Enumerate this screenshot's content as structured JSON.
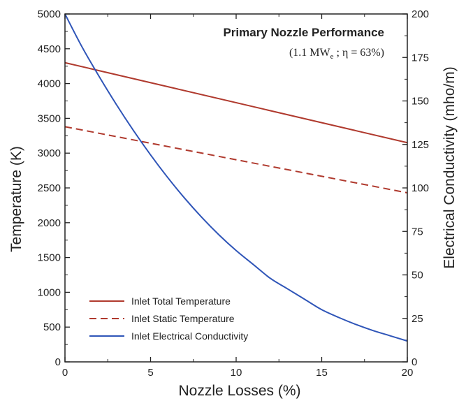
{
  "chart_data": {
    "type": "line",
    "title": "Primary Nozzle Performance",
    "subtitle": "(1.1 MW",
    "subtitle_sub": "e",
    "subtitle_tail": "; η = 63%)",
    "xlabel": "Nozzle Losses  (%)",
    "ylabel": "Temperature  (K)",
    "y2label": "Electrical Conductivity  (mho/m)",
    "xlim": [
      0,
      20
    ],
    "ylim": [
      0,
      5000
    ],
    "y2lim": [
      0,
      200
    ],
    "xticks": [
      "0",
      "5",
      "10",
      "15",
      "20"
    ],
    "yticks": [
      "0",
      "500",
      "1000",
      "1500",
      "2000",
      "2500",
      "3000",
      "3500",
      "4000",
      "4500",
      "5000"
    ],
    "y2ticks": [
      "0",
      "25",
      "50",
      "75",
      "100",
      "125",
      "150",
      "175",
      "200"
    ],
    "grid": false,
    "legend_position": "bottom-left",
    "series": [
      {
        "name": "Inlet Total Temperature",
        "axis": "left",
        "color": "#b03a2e",
        "dash": false,
        "x": [
          0,
          20
        ],
        "y": [
          4300,
          3150
        ]
      },
      {
        "name": "Inlet Static Temperature",
        "axis": "left",
        "color": "#b03a2e",
        "dash": true,
        "x": [
          0,
          20
        ],
        "y": [
          3380,
          2430
        ]
      },
      {
        "name": "Inlet Electrical Conductivity",
        "axis": "right",
        "color": "#2f55b8",
        "dash": false,
        "x": [
          0,
          1,
          2,
          3,
          4,
          5,
          6,
          7,
          8,
          9,
          10,
          11,
          12,
          13,
          14,
          15,
          16,
          17,
          18,
          19,
          20
        ],
        "y": [
          200,
          181,
          164,
          148,
          133,
          119,
          106,
          94,
          83,
          73,
          64,
          56,
          48,
          42,
          36,
          30,
          25.5,
          21.5,
          18,
          15,
          12
        ]
      }
    ]
  }
}
